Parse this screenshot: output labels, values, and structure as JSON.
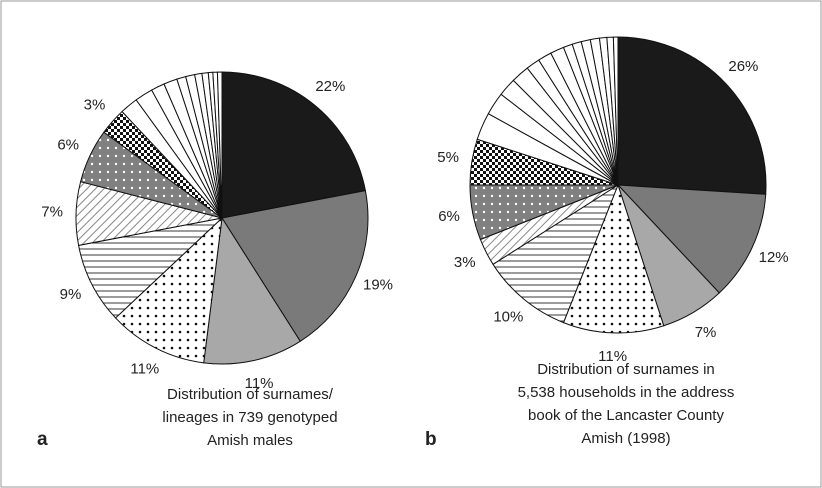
{
  "chart_data": [
    {
      "type": "pie",
      "panel": "a",
      "caption": [
        "Distribution of surnames/",
        "lineages in 739 genotyped",
        "Amish males"
      ],
      "values": [
        22,
        19,
        11,
        11,
        9,
        7,
        6,
        3,
        2,
        2,
        1.5,
        1.5,
        1,
        1,
        0.8,
        0.7,
        0.5,
        0.5,
        0.5
      ],
      "value_labels": [
        "22%",
        "19%",
        "11%",
        "11%",
        "9%",
        "7%",
        "6%",
        "3%",
        null,
        null,
        null,
        null,
        null,
        null,
        null,
        null,
        null,
        null,
        null
      ],
      "colors": [
        "#1a1a1a",
        "#7a7a7a",
        "#a8a8a8",
        "url(#dots)",
        "url(#hlines)",
        "url(#diag)",
        "url(#greydots)",
        "url(#checker)",
        "#fff",
        "#fff",
        "#fff",
        "#fff",
        "#fff",
        "#fff",
        "#fff",
        "#fff",
        "#fff",
        "#fff",
        "#fff"
      ]
    },
    {
      "type": "pie",
      "panel": "b",
      "caption": [
        "Distribution of surnames in",
        "5,538 households in the address",
        "book of the Lancaster County",
        "Amish (1998)"
      ],
      "values": [
        26,
        12,
        7,
        11,
        10,
        3,
        6,
        5,
        3,
        2.5,
        2,
        2,
        1.5,
        1.5,
        1.5,
        1,
        1,
        1,
        1,
        0.8,
        0.7,
        0.5
      ],
      "value_labels": [
        "26%",
        "12%",
        "7%",
        "11%",
        "10%",
        "3%",
        "6%",
        "5%",
        null,
        null,
        null,
        null,
        null,
        null,
        null,
        null,
        null,
        null,
        null,
        null,
        null,
        null
      ],
      "colors": [
        "#1a1a1a",
        "#7a7a7a",
        "#a8a8a8",
        "url(#dots)",
        "url(#hlines)",
        "url(#diag)",
        "url(#greydots)",
        "url(#checker)",
        "#fff",
        "#fff",
        "#fff",
        "#fff",
        "#fff",
        "#fff",
        "#fff",
        "#fff",
        "#fff",
        "#fff",
        "#fff",
        "#fff",
        "#fff",
        "#fff"
      ]
    }
  ]
}
